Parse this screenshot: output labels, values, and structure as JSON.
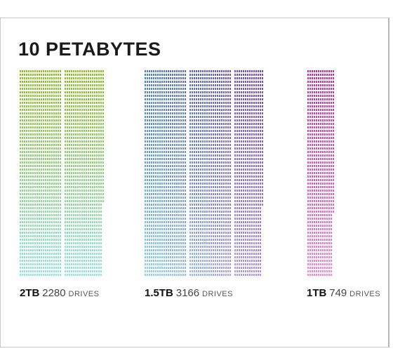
{
  "title": "10 PETABYTES",
  "chart_data": {
    "type": "bar",
    "title": "10 PETABYTES",
    "xlabel": "",
    "ylabel": "",
    "unit_label": "DRIVES",
    "series": [
      {
        "capacity": "2TB",
        "drives": "2280",
        "drive_count": 2280,
        "color_top": "#8dc21f",
        "color_bottom": "#8fe8e0"
      },
      {
        "capacity": "1.5TB",
        "drives": "3166",
        "drive_count": 3166,
        "color_top": "#4a80c4",
        "color_bottom": "#88d6f0",
        "color_top_right": "#8a2bb8",
        "color_bottom_right": "#c56ce8"
      },
      {
        "capacity": "1TB",
        "drives": "749",
        "drive_count": 749,
        "color_top": "#c42fa8",
        "color_bottom": "#f08ad8"
      }
    ]
  }
}
